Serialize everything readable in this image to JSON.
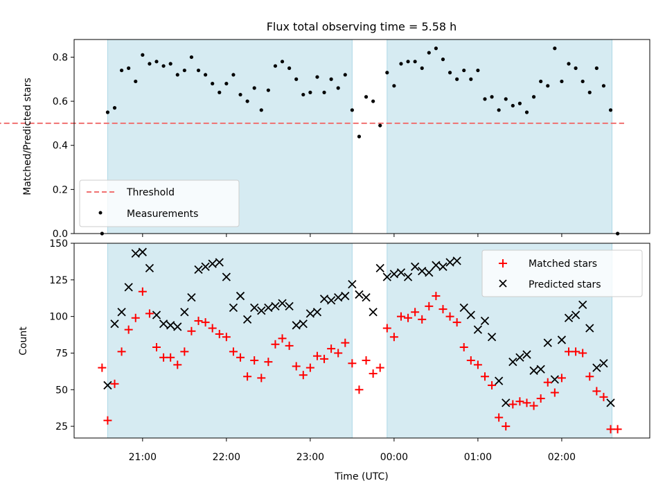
{
  "chart_data": [
    {
      "type": "scatter",
      "title": "Flux total observing time = 5.58 h",
      "xlabel": "",
      "ylabel": "Matched/Predicted stars",
      "ylim": [
        0,
        0.88
      ],
      "yticks": [
        "0.0",
        "0.2",
        "0.4",
        "0.6",
        "0.8"
      ],
      "ytick_values": [
        0,
        0.2,
        0.4,
        0.6,
        0.8
      ],
      "legend_position": "lower-left",
      "threshold": {
        "name": "Threshold",
        "value": 0.5,
        "color": "#f07070",
        "style": "dashed",
        "x_start": "20:53",
        "x_end": "03:10"
      },
      "shaded_spans": [
        {
          "start": "20:35",
          "end": "23:30"
        },
        {
          "start": "23:55",
          "end": "02:36"
        }
      ],
      "series": [
        {
          "name": "Measurements",
          "color": "#000000",
          "points": [
            [
              "20:31",
              0.0
            ],
            [
              "20:35",
              0.55
            ],
            [
              "20:40",
              0.57
            ],
            [
              "20:45",
              0.74
            ],
            [
              "20:50",
              0.75
            ],
            [
              "20:55",
              0.69
            ],
            [
              "21:00",
              0.81
            ],
            [
              "21:05",
              0.77
            ],
            [
              "21:10",
              0.78
            ],
            [
              "21:15",
              0.76
            ],
            [
              "21:20",
              0.77
            ],
            [
              "21:25",
              0.72
            ],
            [
              "21:30",
              0.74
            ],
            [
              "21:35",
              0.8
            ],
            [
              "21:40",
              0.74
            ],
            [
              "21:45",
              0.72
            ],
            [
              "21:50",
              0.68
            ],
            [
              "21:55",
              0.64
            ],
            [
              "22:00",
              0.68
            ],
            [
              "22:05",
              0.72
            ],
            [
              "22:10",
              0.63
            ],
            [
              "22:15",
              0.6
            ],
            [
              "22:20",
              0.66
            ],
            [
              "22:25",
              0.56
            ],
            [
              "22:30",
              0.65
            ],
            [
              "22:35",
              0.76
            ],
            [
              "22:40",
              0.78
            ],
            [
              "22:45",
              0.75
            ],
            [
              "22:50",
              0.7
            ],
            [
              "22:55",
              0.63
            ],
            [
              "23:00",
              0.64
            ],
            [
              "23:05",
              0.71
            ],
            [
              "23:10",
              0.64
            ],
            [
              "23:15",
              0.7
            ],
            [
              "23:20",
              0.66
            ],
            [
              "23:25",
              0.72
            ],
            [
              "23:30",
              0.56
            ],
            [
              "23:35",
              0.44
            ],
            [
              "23:40",
              0.62
            ],
            [
              "23:45",
              0.6
            ],
            [
              "23:50",
              0.49
            ],
            [
              "23:55",
              0.73
            ],
            [
              "00:00",
              0.67
            ],
            [
              "00:05",
              0.77
            ],
            [
              "00:10",
              0.78
            ],
            [
              "00:15",
              0.78
            ],
            [
              "00:20",
              0.75
            ],
            [
              "00:25",
              0.82
            ],
            [
              "00:30",
              0.84
            ],
            [
              "00:35",
              0.79
            ],
            [
              "00:40",
              0.73
            ],
            [
              "00:45",
              0.7
            ],
            [
              "00:50",
              0.74
            ],
            [
              "00:55",
              0.7
            ],
            [
              "01:00",
              0.74
            ],
            [
              "01:05",
              0.61
            ],
            [
              "01:10",
              0.62
            ],
            [
              "01:15",
              0.56
            ],
            [
              "01:20",
              0.61
            ],
            [
              "01:25",
              0.58
            ],
            [
              "01:30",
              0.59
            ],
            [
              "01:35",
              0.55
            ],
            [
              "01:40",
              0.62
            ],
            [
              "01:45",
              0.69
            ],
            [
              "01:50",
              0.67
            ],
            [
              "01:55",
              0.84
            ],
            [
              "02:00",
              0.69
            ],
            [
              "02:05",
              0.77
            ],
            [
              "02:10",
              0.75
            ],
            [
              "02:15",
              0.69
            ],
            [
              "02:20",
              0.64
            ],
            [
              "02:25",
              0.75
            ],
            [
              "02:30",
              0.67
            ],
            [
              "02:35",
              0.56
            ],
            [
              "02:40",
              0.0
            ]
          ]
        }
      ]
    },
    {
      "type": "scatter",
      "title": "",
      "xlabel": "Time (UTC)",
      "ylabel": "Count",
      "ylim": [
        17,
        150
      ],
      "yticks": [
        "25",
        "50",
        "75",
        "100",
        "125",
        "150"
      ],
      "ytick_values": [
        25,
        50,
        75,
        100,
        125,
        150
      ],
      "xticks": [
        "21:00",
        "22:00",
        "23:00",
        "00:00",
        "01:00",
        "02:00"
      ],
      "legend_position": "upper-right",
      "shaded_spans": [
        {
          "start": "20:35",
          "end": "23:30"
        },
        {
          "start": "23:55",
          "end": "02:36"
        }
      ],
      "series": [
        {
          "name": "Matched stars",
          "color": "#ff0000",
          "marker": "plus",
          "points": [
            [
              "20:31",
              65
            ],
            [
              "20:35",
              29
            ],
            [
              "20:40",
              54
            ],
            [
              "20:45",
              76
            ],
            [
              "20:50",
              91
            ],
            [
              "20:55",
              99
            ],
            [
              "21:00",
              117
            ],
            [
              "21:05",
              102
            ],
            [
              "21:10",
              79
            ],
            [
              "21:15",
              72
            ],
            [
              "21:20",
              72
            ],
            [
              "21:25",
              67
            ],
            [
              "21:30",
              76
            ],
            [
              "21:35",
              90
            ],
            [
              "21:40",
              97
            ],
            [
              "21:45",
              96
            ],
            [
              "21:50",
              92
            ],
            [
              "21:55",
              88
            ],
            [
              "22:00",
              86
            ],
            [
              "22:05",
              76
            ],
            [
              "22:10",
              72
            ],
            [
              "22:15",
              59
            ],
            [
              "22:20",
              70
            ],
            [
              "22:25",
              58
            ],
            [
              "22:30",
              69
            ],
            [
              "22:35",
              81
            ],
            [
              "22:40",
              85
            ],
            [
              "22:45",
              80
            ],
            [
              "22:50",
              66
            ],
            [
              "22:55",
              60
            ],
            [
              "23:00",
              65
            ],
            [
              "23:05",
              73
            ],
            [
              "23:10",
              71
            ],
            [
              "23:15",
              78
            ],
            [
              "23:20",
              75
            ],
            [
              "23:25",
              82
            ],
            [
              "23:30",
              68
            ],
            [
              "23:35",
              50
            ],
            [
              "23:40",
              70
            ],
            [
              "23:45",
              61
            ],
            [
              "23:50",
              65
            ],
            [
              "23:55",
              92
            ],
            [
              "00:00",
              86
            ],
            [
              "00:05",
              100
            ],
            [
              "00:10",
              99
            ],
            [
              "00:15",
              103
            ],
            [
              "00:20",
              98
            ],
            [
              "00:25",
              107
            ],
            [
              "00:30",
              114
            ],
            [
              "00:35",
              105
            ],
            [
              "00:40",
              100
            ],
            [
              "00:45",
              96
            ],
            [
              "00:50",
              79
            ],
            [
              "00:55",
              70
            ],
            [
              "01:00",
              67
            ],
            [
              "01:05",
              59
            ],
            [
              "01:10",
              53
            ],
            [
              "01:15",
              31
            ],
            [
              "01:20",
              25
            ],
            [
              "01:25",
              40
            ],
            [
              "01:30",
              42
            ],
            [
              "01:35",
              41
            ],
            [
              "01:40",
              39
            ],
            [
              "01:45",
              44
            ],
            [
              "01:50",
              55
            ],
            [
              "01:55",
              48
            ],
            [
              "02:00",
              58
            ],
            [
              "02:05",
              76
            ],
            [
              "02:10",
              76
            ],
            [
              "02:15",
              75
            ],
            [
              "02:20",
              59
            ],
            [
              "02:25",
              49
            ],
            [
              "02:30",
              45
            ],
            [
              "02:35",
              23
            ],
            [
              "02:40",
              23
            ]
          ]
        },
        {
          "name": "Predicted stars",
          "color": "#000000",
          "marker": "x",
          "points": [
            [
              "20:35",
              53
            ],
            [
              "20:40",
              95
            ],
            [
              "20:45",
              103
            ],
            [
              "20:50",
              120
            ],
            [
              "20:55",
              143
            ],
            [
              "21:00",
              144
            ],
            [
              "21:05",
              133
            ],
            [
              "21:10",
              101
            ],
            [
              "21:15",
              95
            ],
            [
              "21:20",
              94
            ],
            [
              "21:25",
              93
            ],
            [
              "21:30",
              103
            ],
            [
              "21:35",
              113
            ],
            [
              "21:40",
              132
            ],
            [
              "21:45",
              134
            ],
            [
              "21:50",
              136
            ],
            [
              "21:55",
              137
            ],
            [
              "22:00",
              127
            ],
            [
              "22:05",
              106
            ],
            [
              "22:10",
              114
            ],
            [
              "22:15",
              98
            ],
            [
              "22:20",
              106
            ],
            [
              "22:25",
              104
            ],
            [
              "22:30",
              106
            ],
            [
              "22:35",
              107
            ],
            [
              "22:40",
              109
            ],
            [
              "22:45",
              107
            ],
            [
              "22:50",
              94
            ],
            [
              "22:55",
              95
            ],
            [
              "23:00",
              102
            ],
            [
              "23:05",
              103
            ],
            [
              "23:10",
              112
            ],
            [
              "23:15",
              111
            ],
            [
              "23:20",
              113
            ],
            [
              "23:25",
              114
            ],
            [
              "23:30",
              122
            ],
            [
              "23:35",
              115
            ],
            [
              "23:40",
              113
            ],
            [
              "23:45",
              103
            ],
            [
              "23:50",
              133
            ],
            [
              "23:55",
              127
            ],
            [
              "00:00",
              129
            ],
            [
              "00:05",
              130
            ],
            [
              "00:10",
              127
            ],
            [
              "00:15",
              134
            ],
            [
              "00:20",
              131
            ],
            [
              "00:25",
              130
            ],
            [
              "00:30",
              135
            ],
            [
              "00:35",
              134
            ],
            [
              "00:40",
              137
            ],
            [
              "00:45",
              138
            ],
            [
              "00:50",
              106
            ],
            [
              "00:55",
              101
            ],
            [
              "01:00",
              91
            ],
            [
              "01:05",
              97
            ],
            [
              "01:10",
              86
            ],
            [
              "01:15",
              56
            ],
            [
              "01:20",
              41
            ],
            [
              "01:25",
              69
            ],
            [
              "01:30",
              72
            ],
            [
              "01:35",
              74
            ],
            [
              "01:40",
              63
            ],
            [
              "01:45",
              64
            ],
            [
              "01:50",
              82
            ],
            [
              "01:55",
              57
            ],
            [
              "02:00",
              84
            ],
            [
              "02:05",
              99
            ],
            [
              "02:10",
              101
            ],
            [
              "02:15",
              108
            ],
            [
              "02:20",
              92
            ],
            [
              "02:25",
              65
            ],
            [
              "02:30",
              68
            ],
            [
              "02:35",
              41
            ]
          ]
        }
      ]
    }
  ]
}
